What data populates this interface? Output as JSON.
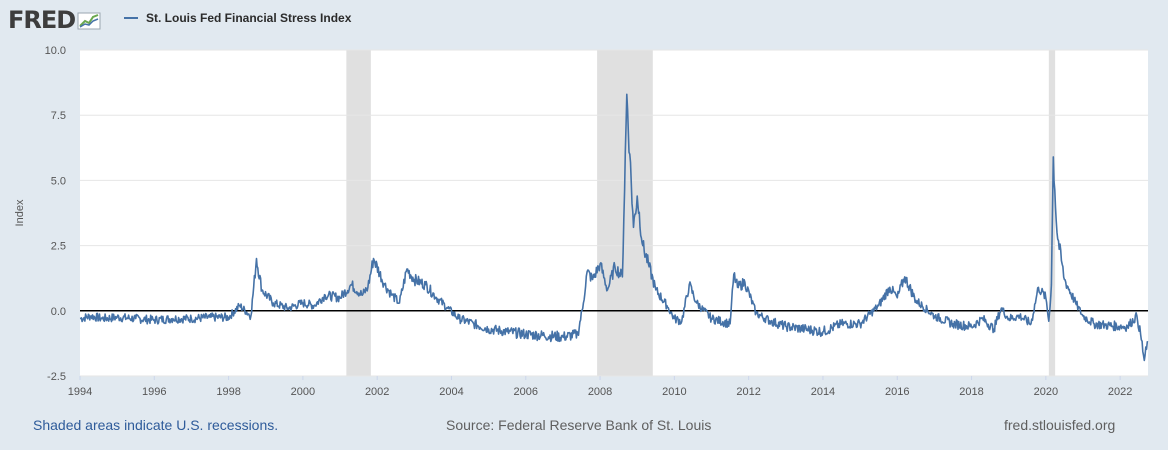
{
  "header": {
    "logo_text": "FRED",
    "legend_label": "St. Louis Fed Financial Stress Index"
  },
  "footer": {
    "recession_note": "Shaded areas indicate U.S. recessions.",
    "source": "Source: Federal Reserve Bank of St. Louis",
    "site": "fred.stlouisfed.org"
  },
  "colors": {
    "series": "#4572a7",
    "recession": "#e0e0e0",
    "background": "#e1e9f0",
    "zero_line": "#000000"
  },
  "chart_data": {
    "type": "line",
    "title": "",
    "xlabel": "",
    "ylabel": "Index",
    "xlim": [
      1994.0,
      2022.75
    ],
    "ylim": [
      -2.5,
      10.0
    ],
    "x_ticks": [
      "1994",
      "1996",
      "1998",
      "2000",
      "2002",
      "2004",
      "2006",
      "2008",
      "2010",
      "2012",
      "2014",
      "2016",
      "2018",
      "2020",
      "2022"
    ],
    "y_ticks": [
      "10.0",
      "7.5",
      "5.0",
      "2.5",
      "0.0",
      "-2.5"
    ],
    "grid": true,
    "reference_line": 0,
    "recessions": [
      [
        2001.17,
        2001.83
      ],
      [
        2007.92,
        2009.42
      ],
      [
        2020.08,
        2020.25
      ]
    ],
    "series": [
      {
        "name": "St. Louis Fed Financial Stress Index",
        "x": [
          1994.0,
          1994.3,
          1994.6,
          1995.0,
          1995.5,
          1996.0,
          1996.5,
          1997.0,
          1997.5,
          1998.0,
          1998.3,
          1998.6,
          1998.75,
          1998.9,
          1999.2,
          1999.6,
          2000.0,
          2000.3,
          2000.6,
          2001.0,
          2001.3,
          2001.6,
          2001.75,
          2001.9,
          2002.2,
          2002.4,
          2002.6,
          2002.8,
          2003.0,
          2003.3,
          2003.6,
          2003.9,
          2004.2,
          2004.6,
          2005.0,
          2005.5,
          2006.0,
          2006.5,
          2007.0,
          2007.4,
          2007.55,
          2007.65,
          2007.8,
          2008.0,
          2008.2,
          2008.4,
          2008.6,
          2008.72,
          2008.8,
          2008.9,
          2009.0,
          2009.15,
          2009.3,
          2009.5,
          2009.8,
          2010.0,
          2010.2,
          2010.4,
          2010.6,
          2011.0,
          2011.5,
          2011.6,
          2011.7,
          2011.9,
          2012.2,
          2012.6,
          2013.0,
          2013.5,
          2014.0,
          2014.5,
          2015.0,
          2015.5,
          2015.8,
          2016.0,
          2016.2,
          2016.5,
          2017.0,
          2017.5,
          2018.0,
          2018.3,
          2018.6,
          2018.8,
          2019.0,
          2019.3,
          2019.6,
          2019.8,
          2020.0,
          2020.08,
          2020.15,
          2020.2,
          2020.3,
          2020.5,
          2020.8,
          2021.0,
          2021.3,
          2021.6,
          2022.0,
          2022.2,
          2022.45,
          2022.55,
          2022.65,
          2022.75
        ],
        "values": [
          -0.3,
          -0.2,
          -0.3,
          -0.25,
          -0.3,
          -0.35,
          -0.3,
          -0.3,
          -0.25,
          -0.25,
          0.2,
          -0.2,
          2.0,
          0.8,
          0.3,
          0.1,
          0.3,
          0.2,
          0.6,
          0.5,
          1.0,
          0.6,
          0.9,
          2.0,
          1.0,
          0.6,
          0.3,
          1.6,
          1.2,
          1.0,
          0.5,
          0.1,
          -0.3,
          -0.5,
          -0.7,
          -0.8,
          -0.9,
          -0.95,
          -1.0,
          -0.9,
          0.3,
          1.5,
          1.2,
          1.8,
          0.8,
          1.7,
          1.3,
          8.3,
          6.0,
          3.2,
          4.4,
          2.5,
          1.8,
          0.8,
          0.2,
          -0.3,
          -0.4,
          1.0,
          0.3,
          -0.3,
          -0.5,
          1.4,
          0.9,
          1.1,
          -0.1,
          -0.4,
          -0.6,
          -0.7,
          -0.8,
          -0.5,
          -0.5,
          0.2,
          0.9,
          0.5,
          1.3,
          0.4,
          -0.2,
          -0.5,
          -0.6,
          -0.3,
          -0.7,
          0.1,
          -0.3,
          -0.2,
          -0.5,
          0.9,
          0.5,
          -0.4,
          1.0,
          5.9,
          3.0,
          1.2,
          0.3,
          -0.2,
          -0.5,
          -0.55,
          -0.6,
          -0.6,
          -0.2,
          -0.9,
          -1.9,
          -1.2
        ]
      }
    ]
  }
}
